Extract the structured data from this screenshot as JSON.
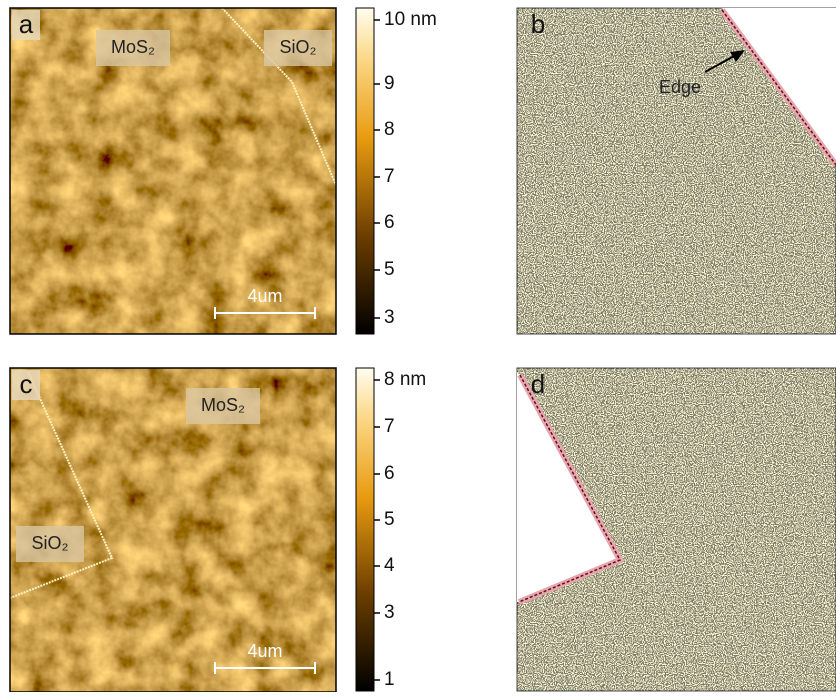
{
  "panels": [
    {
      "label": "a",
      "annotations": [
        "MoS₂",
        "SiO₂"
      ],
      "scale_bar": "4um",
      "colorbar": [
        "10 nm",
        "9",
        "8",
        "7",
        "6",
        "5",
        "3"
      ]
    },
    {
      "label": "b",
      "annotations": [
        "Edge"
      ]
    },
    {
      "label": "c",
      "annotations": [
        "MoS₂",
        "SiO₂"
      ],
      "scale_bar": "4um",
      "colorbar": [
        "8 nm",
        "7",
        "6",
        "5",
        "4",
        "3",
        "1"
      ]
    },
    {
      "label": "d"
    }
  ]
}
